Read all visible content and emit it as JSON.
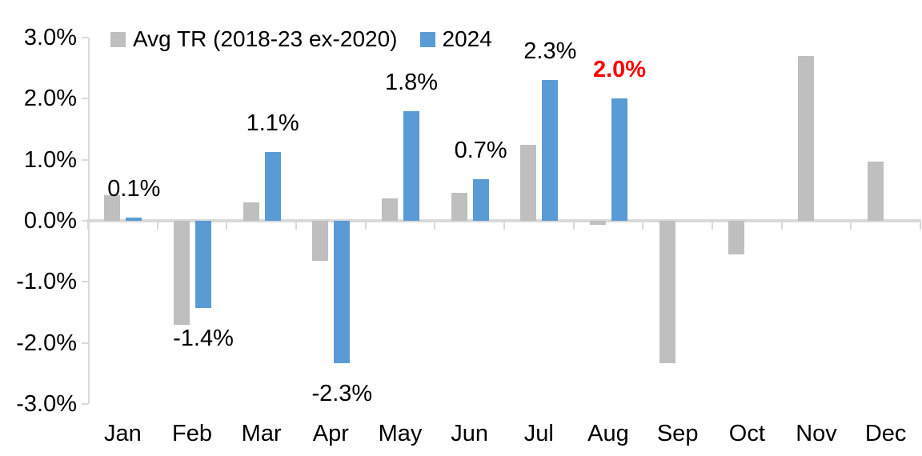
{
  "chart_data": {
    "type": "bar",
    "title": "",
    "xlabel": "",
    "ylabel": "",
    "grid": false,
    "legend_position": "top",
    "background_color": "#ffffff",
    "axis_color": "#d9d9d9",
    "text_color": "#000000",
    "ylim": [
      -3,
      3
    ],
    "yticks": [
      "3.0%",
      "2.0%",
      "1.0%",
      "0.0%",
      "-1.0%",
      "-2.0%",
      "-3.0%"
    ],
    "ytick_values": [
      3,
      2,
      1,
      0,
      -1,
      -2,
      -3
    ],
    "categories": [
      "Jan",
      "Feb",
      "Mar",
      "Apr",
      "May",
      "Jun",
      "Jul",
      "Aug",
      "Sep",
      "Oct",
      "Nov",
      "Dec"
    ],
    "series": [
      {
        "name": "Avg TR (2018-23 ex-2020)",
        "color": "#bfbfbf",
        "values": [
          0.42,
          -1.7,
          0.3,
          -0.65,
          0.37,
          0.46,
          1.25,
          -0.06,
          -2.33,
          -0.55,
          2.7,
          0.97
        ]
      },
      {
        "name": "2024",
        "color": "#5b9bd5",
        "values": [
          0.05,
          -1.43,
          1.13,
          -2.33,
          1.8,
          0.68,
          2.3,
          2.0,
          null,
          null,
          null,
          null
        ]
      }
    ],
    "data_labels": [
      {
        "text": "0.1%",
        "color": "#000000",
        "bold": false
      },
      {
        "text": "-1.4%",
        "color": "#000000",
        "bold": false
      },
      {
        "text": "1.1%",
        "color": "#000000",
        "bold": false
      },
      {
        "text": "-2.3%",
        "color": "#000000",
        "bold": false
      },
      {
        "text": "1.8%",
        "color": "#000000",
        "bold": false
      },
      {
        "text": "0.7%",
        "color": "#000000",
        "bold": false
      },
      {
        "text": "2.3%",
        "color": "#000000",
        "bold": false
      },
      {
        "text": "2.0%",
        "color": "#ff0000",
        "bold": true
      },
      null,
      null,
      null,
      null
    ]
  }
}
